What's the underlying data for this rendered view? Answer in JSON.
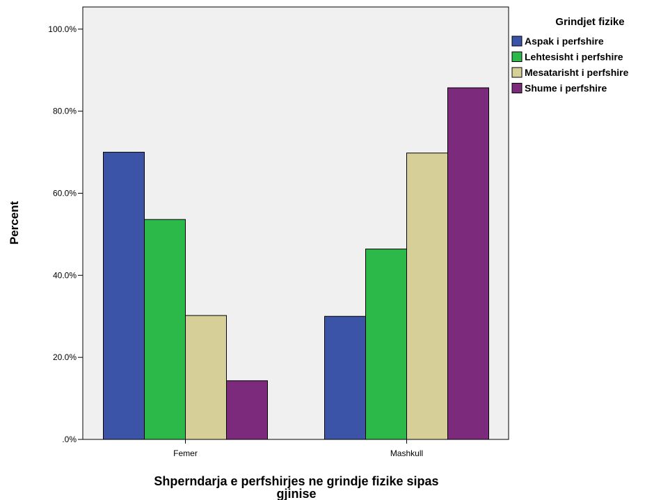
{
  "chart_data": {
    "type": "bar",
    "categories": [
      "Femer",
      "Mashkull"
    ],
    "series": [
      {
        "name": "Aspak i perfshire",
        "color": "#3b54a8",
        "values": [
          70.0,
          30.0
        ]
      },
      {
        "name": "Lehtesisht i perfshire",
        "color": "#2db84a",
        "values": [
          53.6,
          46.4
        ]
      },
      {
        "name": "Mesatarisht i perfshire",
        "color": "#d6cf97",
        "values": [
          30.2,
          69.8
        ]
      },
      {
        "name": "Shume i perfshire",
        "color": "#7b2a7c",
        "values": [
          14.3,
          85.7
        ]
      }
    ],
    "ylabel": "Percent",
    "xlabel_lines": [
      "Shperndarja e perfshirjes ne grindje fizike sipas",
      "gjinise"
    ],
    "yticks": [
      0,
      20,
      40,
      60,
      80,
      100
    ],
    "ytick_labels": [
      ".0%",
      "20.0%",
      "40.0%",
      "60.0%",
      "80.0%",
      "100.0%"
    ],
    "ylim": [
      0,
      105.4
    ],
    "legend_title": "Grindjet fizike",
    "legend_position": "right",
    "plot_background": "#f0f0f0",
    "grid": false
  }
}
